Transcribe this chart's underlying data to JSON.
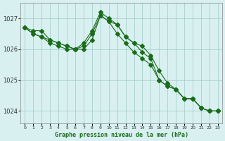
{
  "title": "Graphe pression niveau de la mer (hPa)",
  "background_color": "#d8f0f0",
  "grid_color": "#a0c8c8",
  "line_color": "#1a6b1a",
  "hours": [
    0,
    1,
    2,
    3,
    4,
    5,
    6,
    7,
    8,
    9,
    10,
    11,
    12,
    13,
    14,
    15,
    16,
    17,
    18,
    19,
    20,
    21,
    22,
    23
  ],
  "line1": [
    1026.7,
    1026.6,
    1026.6,
    1026.3,
    1026.2,
    1026.1,
    1026.0,
    1026.0,
    1026.3,
    1027.1,
    1026.9,
    1026.8,
    1026.4,
    1026.2,
    1025.9,
    1025.7,
    1025.0,
    1024.8,
    1024.7,
    1024.4,
    1024.4,
    1024.1,
    1024.0,
    1024.0
  ],
  "line2": [
    1026.7,
    1026.5,
    1026.4,
    1026.2,
    1026.1,
    1026.0,
    1026.0,
    1026.1,
    1026.5,
    1027.1,
    1026.9,
    1026.5,
    1026.2,
    1025.9,
    1025.7,
    1025.5,
    1025.0,
    1024.8,
    1024.7,
    1024.4,
    1024.4,
    1024.1,
    1024.0,
    1024.0
  ],
  "line3": [
    1026.7,
    1026.5,
    1026.4,
    1026.3,
    1026.2,
    1026.1,
    1026.0,
    1026.2,
    1026.6,
    1027.2,
    1027.0,
    1026.8,
    1026.4,
    1026.2,
    1026.1,
    1025.8,
    1025.3,
    1024.9,
    1024.7,
    1024.4,
    1024.4,
    1024.1,
    1024.0,
    1024.0
  ],
  "ylim_min": 1023.6,
  "ylim_max": 1027.5,
  "yticks": [
    1024,
    1025,
    1026,
    1027
  ],
  "marker_size": 3
}
